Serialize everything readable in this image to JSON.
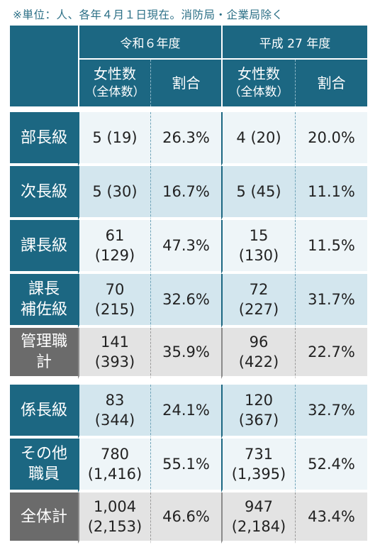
{
  "note": "※単位：人、各年４月１日現在。消防局・企業局除く",
  "header": {
    "group_current": "令和６年度",
    "group_past": "平成 27 年度",
    "women_label": "女性数",
    "women_sub": "（全体数）",
    "ratio_label": "割合"
  },
  "rows": [
    {
      "label": [
        "部長級"
      ],
      "cur_count": [
        "5 (19)"
      ],
      "cur_ratio": "26.3%",
      "past_count": [
        "4 (20)"
      ],
      "past_ratio": "20.0%"
    },
    {
      "label": [
        "次長級"
      ],
      "cur_count": [
        "5 (30)"
      ],
      "cur_ratio": "16.7%",
      "past_count": [
        "5 (45)"
      ],
      "past_ratio": "11.1%"
    },
    {
      "label": [
        "課長級"
      ],
      "cur_count": [
        "61",
        "(129)"
      ],
      "cur_ratio": "47.3%",
      "past_count": [
        "15",
        "(130)"
      ],
      "past_ratio": "11.5%"
    },
    {
      "label": [
        "課長",
        "補佐級"
      ],
      "cur_count": [
        "70",
        "(215)"
      ],
      "cur_ratio": "32.6%",
      "past_count": [
        "72",
        "(227)"
      ],
      "past_ratio": "31.7%"
    },
    {
      "label": [
        "管理職",
        "計"
      ],
      "cur_count": [
        "141",
        "(393)"
      ],
      "cur_ratio": "35.9%",
      "past_count": [
        "96",
        "(422)"
      ],
      "past_ratio": "22.7%"
    },
    {
      "label": [
        "係長級"
      ],
      "cur_count": [
        "83",
        "(344)"
      ],
      "cur_ratio": "24.1%",
      "past_count": [
        "120",
        "(367)"
      ],
      "past_ratio": "32.7%"
    },
    {
      "label": [
        "その他",
        "職員"
      ],
      "cur_count": [
        "780",
        "(1,416)"
      ],
      "cur_ratio": "55.1%",
      "past_count": [
        "731",
        "(1,395)"
      ],
      "past_ratio": "52.4%"
    },
    {
      "label": [
        "全体計"
      ],
      "cur_count": [
        "1,004",
        "(2,153)"
      ],
      "cur_ratio": "46.6%",
      "past_count": [
        "947",
        "(2,184)"
      ],
      "past_ratio": "43.4%"
    }
  ],
  "colors": {
    "header_teal": "#1c6782",
    "subtotal_gray": "#6b6b6b",
    "row_light": "#eef5f8",
    "row_blue": "#d3e6ee",
    "row_gray": "#e3e3e3"
  }
}
